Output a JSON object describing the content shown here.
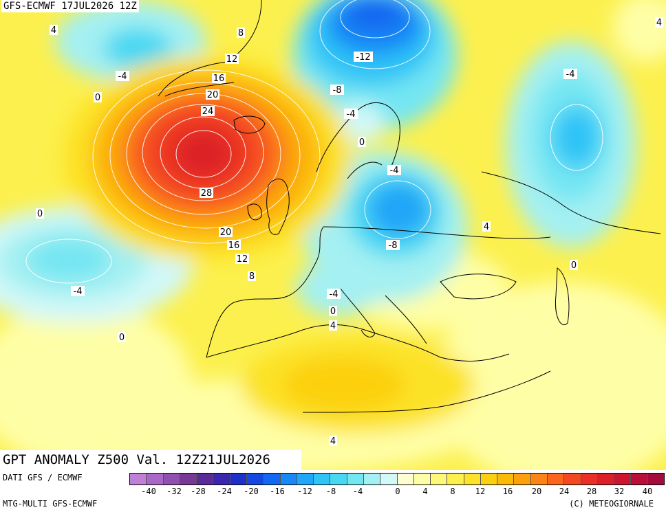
{
  "header": {
    "title": "GFS-ECMWF 17JUL2026 12Z"
  },
  "main_title": "GPT ANOMALY Z500 Val. 12Z21JUL2026",
  "footer": {
    "source_line_1": "DATI GFS / ECMWF",
    "source_line_2": "MTG-MULTI GFS-ECMWF",
    "copyright": "(C) METEOGIORNALE"
  },
  "colorbar": {
    "colors": [
      "#c080d8",
      "#a868c8",
      "#9050b0",
      "#783898",
      "#5a2a9a",
      "#3a26b0",
      "#1e30c8",
      "#1448e0",
      "#1268f0",
      "#1888f6",
      "#22a6f8",
      "#2ec4f6",
      "#48d8f2",
      "#74e6f2",
      "#a4f0f2",
      "#d2f8f8",
      "#fefed2",
      "#fefea6",
      "#fef87a",
      "#fcf04e",
      "#fce228",
      "#fcd010",
      "#fcba08",
      "#fca00c",
      "#fc8414",
      "#fa661c",
      "#f44820",
      "#ea3024",
      "#dc2028",
      "#cc1630",
      "#b81038",
      "#a40c3c"
    ],
    "tick_labels": [
      "-40",
      "-32",
      "-28",
      "-24",
      "-20",
      "-16",
      "-12",
      "-8",
      "-4",
      "0",
      "4",
      "8",
      "12",
      "16",
      "20",
      "24",
      "28",
      "32",
      "40"
    ]
  },
  "contour_labels": [
    {
      "text": "4"
    },
    {
      "text": "8"
    },
    {
      "text": "12"
    },
    {
      "text": "16"
    },
    {
      "text": "20"
    },
    {
      "text": "24"
    },
    {
      "text": "28"
    },
    {
      "text": "20"
    },
    {
      "text": "16"
    },
    {
      "text": "12"
    },
    {
      "text": "8"
    },
    {
      "text": "-4"
    },
    {
      "text": "0"
    },
    {
      "text": "-12"
    },
    {
      "text": "-8"
    },
    {
      "text": "-4"
    },
    {
      "text": "0"
    },
    {
      "text": "-4"
    },
    {
      "text": "-8"
    },
    {
      "text": "4"
    },
    {
      "text": "-4"
    },
    {
      "text": "0"
    },
    {
      "text": "4"
    },
    {
      "text": "0"
    },
    {
      "text": "-4"
    },
    {
      "text": "0"
    },
    {
      "text": "-4"
    },
    {
      "text": "0"
    },
    {
      "text": "4"
    },
    {
      "text": "4"
    }
  ]
}
